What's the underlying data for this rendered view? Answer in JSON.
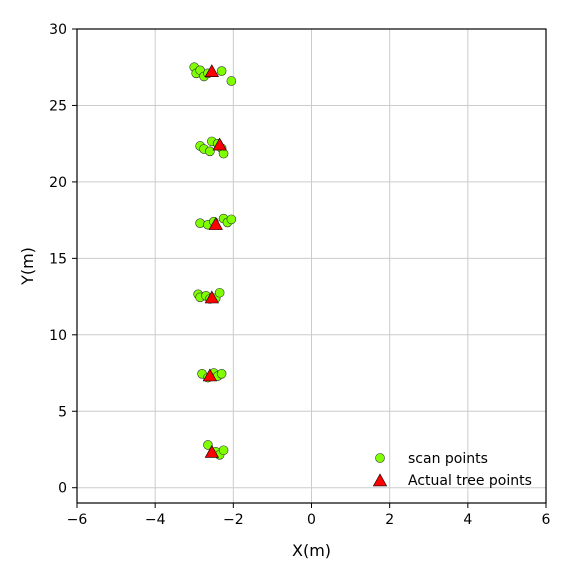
{
  "chart_data": {
    "type": "scatter",
    "title": "",
    "xlabel": "X(m)",
    "ylabel": "Y(m)",
    "xlim": [
      -6,
      6
    ],
    "ylim": [
      -1,
      30
    ],
    "xticks": [
      -6,
      -4,
      -2,
      0,
      2,
      4,
      6
    ],
    "yticks": [
      0,
      5,
      10,
      15,
      20,
      25,
      30
    ],
    "xtick_labels": [
      "−6",
      "−4",
      "−2",
      "0",
      "2",
      "4",
      "6"
    ],
    "ytick_labels": [
      "0",
      "5",
      "10",
      "15",
      "20",
      "25",
      "30"
    ],
    "grid": true,
    "legend_position": "bottom-right",
    "series": [
      {
        "name": "scan points",
        "marker": "circle",
        "color": "#7fff00",
        "edge_color": "#333333",
        "points": [
          [
            -3.0,
            27.5
          ],
          [
            -2.95,
            27.1
          ],
          [
            -2.85,
            27.3
          ],
          [
            -2.75,
            26.9
          ],
          [
            -2.65,
            27.1
          ],
          [
            -2.3,
            27.25
          ],
          [
            -2.05,
            26.6
          ],
          [
            -2.85,
            22.35
          ],
          [
            -2.75,
            22.15
          ],
          [
            -2.6,
            22.0
          ],
          [
            -2.55,
            22.65
          ],
          [
            -2.4,
            22.5
          ],
          [
            -2.3,
            22.2
          ],
          [
            -2.25,
            21.85
          ],
          [
            -2.85,
            17.3
          ],
          [
            -2.65,
            17.2
          ],
          [
            -2.5,
            17.4
          ],
          [
            -2.25,
            17.6
          ],
          [
            -2.15,
            17.35
          ],
          [
            -2.05,
            17.55
          ],
          [
            -2.9,
            12.65
          ],
          [
            -2.85,
            12.45
          ],
          [
            -2.7,
            12.55
          ],
          [
            -2.6,
            12.35
          ],
          [
            -2.45,
            12.4
          ],
          [
            -2.35,
            12.75
          ],
          [
            -2.8,
            7.45
          ],
          [
            -2.65,
            7.2
          ],
          [
            -2.5,
            7.5
          ],
          [
            -2.4,
            7.3
          ],
          [
            -2.3,
            7.45
          ],
          [
            -2.65,
            2.8
          ],
          [
            -2.45,
            2.35
          ],
          [
            -2.35,
            2.15
          ],
          [
            -2.25,
            2.45
          ]
        ]
      },
      {
        "name": "Actual tree points",
        "marker": "triangle",
        "color": "#ff0000",
        "edge_color": "#000000",
        "points": [
          [
            -2.55,
            27.2
          ],
          [
            -2.35,
            22.4
          ],
          [
            -2.45,
            17.2
          ],
          [
            -2.55,
            12.4
          ],
          [
            -2.6,
            7.3
          ],
          [
            -2.55,
            2.3
          ]
        ]
      }
    ]
  }
}
